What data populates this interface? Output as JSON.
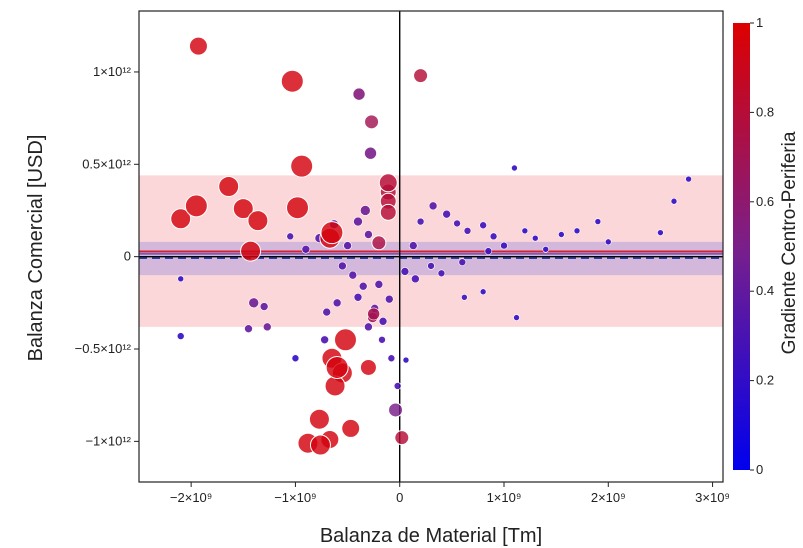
{
  "chart_data": {
    "type": "scatter",
    "title": "",
    "xlabel": "Balanza de Material [Tm]",
    "ylabel": "Balanza Comercial [USD]",
    "xlim": [
      -2500000000.0,
      3100000000.0
    ],
    "ylim": [
      -1220000000000.0,
      1330000000000.0
    ],
    "x_ticks": [
      {
        "value": -2000000000.0,
        "label": "−2×10⁹"
      },
      {
        "value": -1000000000.0,
        "label": "−1×10⁹"
      },
      {
        "value": 0,
        "label": "0"
      },
      {
        "value": 1000000000.0,
        "label": "1×10⁹"
      },
      {
        "value": 2000000000.0,
        "label": "2×10⁹"
      },
      {
        "value": 3000000000.0,
        "label": "3×10⁹"
      }
    ],
    "y_ticks": [
      {
        "value": 1000000000000.0,
        "label": "1×10¹²"
      },
      {
        "value": 500000000000.0,
        "label": "0.5×10¹²"
      },
      {
        "value": 0,
        "label": "0"
      },
      {
        "value": -500000000000.0,
        "label": "−0.5×10¹²"
      },
      {
        "value": -1000000000000.0,
        "label": "−1×10¹²"
      }
    ],
    "colorbar": {
      "title": "Gradiente Centro-Periferia",
      "range": [
        0,
        1
      ],
      "ticks": [
        {
          "value": 1,
          "label": "1"
        },
        {
          "value": 0.8,
          "label": "0.8"
        },
        {
          "value": 0.6,
          "label": "0.6"
        },
        {
          "value": 0.4,
          "label": "0.4"
        },
        {
          "value": 0.2,
          "label": "0.2"
        },
        {
          "value": 0,
          "label": "0"
        }
      ],
      "color_low": "#0000ee",
      "color_mid": "#7a1f8a",
      "color_high": "#dd0000"
    },
    "bands": [
      {
        "y0": -380000000000.0,
        "y1": 440000000000.0,
        "color": "#f9c9cc",
        "opacity": 0.75
      },
      {
        "y0": -100000000000.0,
        "y1": 80000000000.0,
        "color": "#b9a3dc",
        "opacity": 0.6
      }
    ],
    "hlines": [
      {
        "y": 28000000000.0,
        "color": "#d62030",
        "width": 2
      },
      {
        "y": 15000000000.0,
        "color": "#6a4fb0",
        "width": 1.5
      },
      {
        "y": 0,
        "color": "#000000",
        "width": 1.4
      },
      {
        "y": -8000000000.0,
        "color": "#1a2fa0",
        "width": 1.5,
        "dash": "8,5"
      }
    ],
    "vline": {
      "x": 0,
      "color": "#000000",
      "width": 1.4
    },
    "points": [
      {
        "x": -1930000000.0,
        "y": 1140000000000.0,
        "c": 0.95,
        "s": 9
      },
      {
        "x": -1030000000.0,
        "y": 950000000000.0,
        "c": 0.95,
        "s": 11
      },
      {
        "x": 200000000.0,
        "y": 980000000000.0,
        "c": 0.8,
        "s": 7
      },
      {
        "x": -390000000.0,
        "y": 880000000000.0,
        "c": 0.55,
        "s": 6
      },
      {
        "x": -270000000.0,
        "y": 730000000000.0,
        "c": 0.7,
        "s": 7
      },
      {
        "x": -280000000.0,
        "y": 560000000000.0,
        "c": 0.5,
        "s": 6
      },
      {
        "x": -940000000.0,
        "y": 490000000000.0,
        "c": 0.95,
        "s": 11
      },
      {
        "x": -1640000000.0,
        "y": 380000000000.0,
        "c": 0.95,
        "s": 10
      },
      {
        "x": -1950000000.0,
        "y": 275000000000.0,
        "c": 0.95,
        "s": 11
      },
      {
        "x": -1500000000.0,
        "y": 260000000000.0,
        "c": 0.95,
        "s": 10
      },
      {
        "x": -980000000.0,
        "y": 265000000000.0,
        "c": 0.95,
        "s": 11
      },
      {
        "x": -2100000000.0,
        "y": 205000000000.0,
        "c": 0.95,
        "s": 10
      },
      {
        "x": -1360000000.0,
        "y": 195000000000.0,
        "c": 0.95,
        "s": 10
      },
      {
        "x": -1430000000.0,
        "y": 30000000000.0,
        "c": 0.95,
        "s": 10
      },
      {
        "x": -650000000.0,
        "y": 130000000000.0,
        "c": 0.95,
        "s": 11
      },
      {
        "x": -670000000.0,
        "y": 100000000000.0,
        "c": 0.95,
        "s": 10
      },
      {
        "x": -110000000.0,
        "y": 400000000000.0,
        "c": 0.8,
        "s": 9
      },
      {
        "x": -110000000.0,
        "y": 350000000000.0,
        "c": 0.8,
        "s": 8
      },
      {
        "x": -110000000.0,
        "y": 300000000000.0,
        "c": 0.8,
        "s": 8
      },
      {
        "x": -110000000.0,
        "y": 240000000000.0,
        "c": 0.8,
        "s": 8
      },
      {
        "x": -200000000.0,
        "y": 75000000000.0,
        "c": 0.75,
        "s": 7
      },
      {
        "x": -520000000.0,
        "y": -450000000000.0,
        "c": 0.95,
        "s": 11
      },
      {
        "x": -650000000.0,
        "y": -550000000000.0,
        "c": 0.95,
        "s": 10
      },
      {
        "x": -600000000.0,
        "y": -600000000000.0,
        "c": 0.95,
        "s": 11
      },
      {
        "x": -550000000.0,
        "y": -630000000000.0,
        "c": 0.95,
        "s": 10
      },
      {
        "x": -300000000.0,
        "y": -600000000000.0,
        "c": 0.95,
        "s": 8
      },
      {
        "x": -620000000.0,
        "y": -700000000000.0,
        "c": 0.95,
        "s": 10
      },
      {
        "x": -770000000.0,
        "y": -880000000000.0,
        "c": 0.95,
        "s": 10
      },
      {
        "x": -470000000.0,
        "y": -930000000000.0,
        "c": 0.95,
        "s": 9
      },
      {
        "x": -670000000.0,
        "y": -990000000000.0,
        "c": 0.95,
        "s": 9
      },
      {
        "x": -880000000.0,
        "y": -1010000000000.0,
        "c": 0.95,
        "s": 10
      },
      {
        "x": -760000000.0,
        "y": -1020000000000.0,
        "c": 0.95,
        "s": 10
      },
      {
        "x": 20000000.0,
        "y": -980000000000.0,
        "c": 0.8,
        "s": 7
      },
      {
        "x": -40000000.0,
        "y": -830000000000.0,
        "c": 0.5,
        "s": 7
      },
      {
        "x": -250000000.0,
        "y": -310000000000.0,
        "c": 0.7,
        "s": 6
      },
      {
        "x": -260000000.0,
        "y": -330000000000.0,
        "c": 0.7,
        "s": 5
      },
      {
        "x": -1400000000.0,
        "y": -250000000000.0,
        "c": 0.45,
        "s": 5
      },
      {
        "x": -1450000000.0,
        "y": -390000000000.0,
        "c": 0.4,
        "s": 4
      },
      {
        "x": -1270000000.0,
        "y": -380000000000.0,
        "c": 0.45,
        "s": 4
      },
      {
        "x": -1300000000.0,
        "y": -270000000000.0,
        "c": 0.4,
        "s": 4
      },
      {
        "x": -2100000000.0,
        "y": -430000000000.0,
        "c": 0.2,
        "s": 3.5
      },
      {
        "x": -2100000000.0,
        "y": -120000000000.0,
        "c": 0.2,
        "s": 3
      },
      {
        "x": -1050000000.0,
        "y": 110000000000.0,
        "c": 0.3,
        "s": 3.5
      },
      {
        "x": -330000000.0,
        "y": 250000000000.0,
        "c": 0.45,
        "s": 5
      },
      {
        "x": -400000000.0,
        "y": 190000000000.0,
        "c": 0.4,
        "s": 4.5
      },
      {
        "x": -630000000.0,
        "y": 175000000000.0,
        "c": 0.4,
        "s": 4.5
      },
      {
        "x": -770000000.0,
        "y": 100000000000.0,
        "c": 0.35,
        "s": 4.5
      },
      {
        "x": -700000000.0,
        "y": -300000000000.0,
        "c": 0.35,
        "s": 4
      },
      {
        "x": -720000000.0,
        "y": -450000000000.0,
        "c": 0.3,
        "s": 4
      },
      {
        "x": -1000000000.0,
        "y": -550000000000.0,
        "c": 0.2,
        "s": 3.5
      },
      {
        "x": -400000000.0,
        "y": -220000000000.0,
        "c": 0.3,
        "s": 4
      },
      {
        "x": -240000000.0,
        "y": -280000000000.0,
        "c": 0.4,
        "s": 4
      },
      {
        "x": -160000000.0,
        "y": -350000000000.0,
        "c": 0.3,
        "s": 4
      },
      {
        "x": -170000000.0,
        "y": -450000000000.0,
        "c": 0.3,
        "s": 3.5
      },
      {
        "x": -200000000.0,
        "y": -150000000000.0,
        "c": 0.35,
        "s": 4
      },
      {
        "x": -80000000.0,
        "y": -550000000000.0,
        "c": 0.3,
        "s": 3.5
      },
      {
        "x": -20000000.0,
        "y": -700000000000.0,
        "c": 0.3,
        "s": 3.5
      },
      {
        "x": 60000000.0,
        "y": -560000000000.0,
        "c": 0.2,
        "s": 3
      },
      {
        "x": 50000000.0,
        "y": -80000000000.0,
        "c": 0.3,
        "s": 4
      },
      {
        "x": 150000000.0,
        "y": -120000000000.0,
        "c": 0.3,
        "s": 4
      },
      {
        "x": 130000000.0,
        "y": 60000000000.0,
        "c": 0.35,
        "s": 4
      },
      {
        "x": 200000000.0,
        "y": 190000000000.0,
        "c": 0.3,
        "s": 3.5
      },
      {
        "x": 320000000.0,
        "y": 275000000000.0,
        "c": 0.35,
        "s": 4
      },
      {
        "x": 450000000.0,
        "y": 230000000000.0,
        "c": 0.3,
        "s": 4
      },
      {
        "x": 550000000.0,
        "y": 180000000000.0,
        "c": 0.3,
        "s": 3.5
      },
      {
        "x": 650000000.0,
        "y": 140000000000.0,
        "c": 0.3,
        "s": 3.5
      },
      {
        "x": 800000000.0,
        "y": 170000000000.0,
        "c": 0.25,
        "s": 3.5
      },
      {
        "x": 900000000.0,
        "y": 110000000000.0,
        "c": 0.25,
        "s": 3.5
      },
      {
        "x": 1000000000.0,
        "y": 60000000000.0,
        "c": 0.25,
        "s": 3.5
      },
      {
        "x": 1100000000.0,
        "y": 480000000000.0,
        "c": 0.2,
        "s": 3
      },
      {
        "x": 1200000000.0,
        "y": 140000000000.0,
        "c": 0.2,
        "s": 3
      },
      {
        "x": 1300000000.0,
        "y": 100000000000.0,
        "c": 0.2,
        "s": 3
      },
      {
        "x": 1400000000.0,
        "y": 40000000000.0,
        "c": 0.2,
        "s": 3
      },
      {
        "x": 1550000000.0,
        "y": 120000000000.0,
        "c": 0.2,
        "s": 3
      },
      {
        "x": 1700000000.0,
        "y": 140000000000.0,
        "c": 0.2,
        "s": 3
      },
      {
        "x": 1900000000.0,
        "y": 190000000000.0,
        "c": 0.2,
        "s": 3
      },
      {
        "x": 2000000000.0,
        "y": 80000000000.0,
        "c": 0.2,
        "s": 3
      },
      {
        "x": 2500000000.0,
        "y": 130000000000.0,
        "c": 0.2,
        "s": 3
      },
      {
        "x": 2630000000.0,
        "y": 300000000000.0,
        "c": 0.2,
        "s": 3
      },
      {
        "x": 2770000000.0,
        "y": 420000000000.0,
        "c": 0.2,
        "s": 3
      },
      {
        "x": 1120000000.0,
        "y": -330000000000.0,
        "c": 0.2,
        "s": 3
      },
      {
        "x": 800000000.0,
        "y": -190000000000.0,
        "c": 0.2,
        "s": 3
      },
      {
        "x": 620000000.0,
        "y": -220000000000.0,
        "c": 0.25,
        "s": 3
      },
      {
        "x": 400000000.0,
        "y": -90000000000.0,
        "c": 0.3,
        "s": 3.5
      },
      {
        "x": 300000000.0,
        "y": -50000000000.0,
        "c": 0.3,
        "s": 3.5
      },
      {
        "x": 600000000.0,
        "y": -30000000000.0,
        "c": 0.3,
        "s": 3.5
      },
      {
        "x": 850000000.0,
        "y": 30000000000.0,
        "c": 0.25,
        "s": 3.5
      },
      {
        "x": -350000000.0,
        "y": -160000000000.0,
        "c": 0.35,
        "s": 4
      },
      {
        "x": -450000000.0,
        "y": -100000000000.0,
        "c": 0.35,
        "s": 4
      },
      {
        "x": -550000000.0,
        "y": -50000000000.0,
        "c": 0.35,
        "s": 4
      },
      {
        "x": -300000000.0,
        "y": 120000000000.0,
        "c": 0.4,
        "s": 4
      },
      {
        "x": -500000000.0,
        "y": 60000000000.0,
        "c": 0.35,
        "s": 4
      },
      {
        "x": -900000000.0,
        "y": 40000000000.0,
        "c": 0.35,
        "s": 4
      },
      {
        "x": -600000000.0,
        "y": -250000000000.0,
        "c": 0.35,
        "s": 4
      },
      {
        "x": -100000000.0,
        "y": -230000000000.0,
        "c": 0.35,
        "s": 4
      },
      {
        "x": -300000000.0,
        "y": -380000000000.0,
        "c": 0.35,
        "s": 4
      }
    ]
  }
}
